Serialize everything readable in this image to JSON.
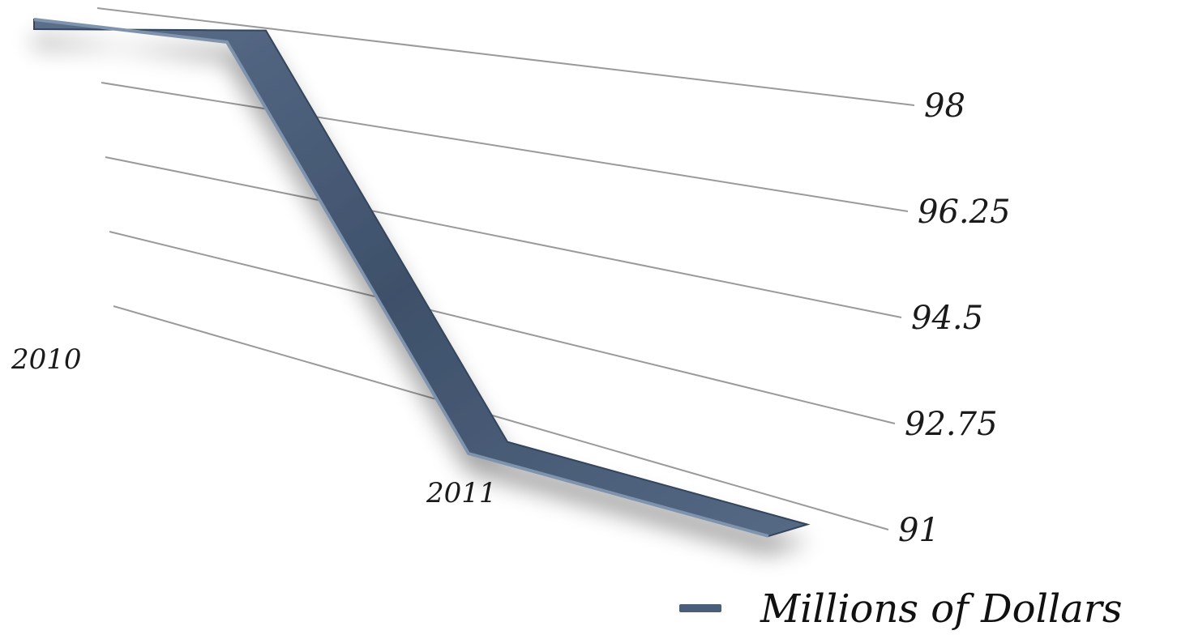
{
  "chart_data": {
    "type": "line",
    "categories": [
      "2010",
      "2011"
    ],
    "series": [
      {
        "name": "Millions of Dollars",
        "values": [
          98,
          91
        ],
        "color": "#4a5e7a"
      }
    ],
    "y_ticks": [
      "98",
      "96.25",
      "94.5",
      "92.75",
      "91"
    ],
    "ylim": [
      91,
      98
    ],
    "grid": true,
    "legend": "bottom-right",
    "title": "",
    "xlabel": "",
    "ylabel": ""
  }
}
